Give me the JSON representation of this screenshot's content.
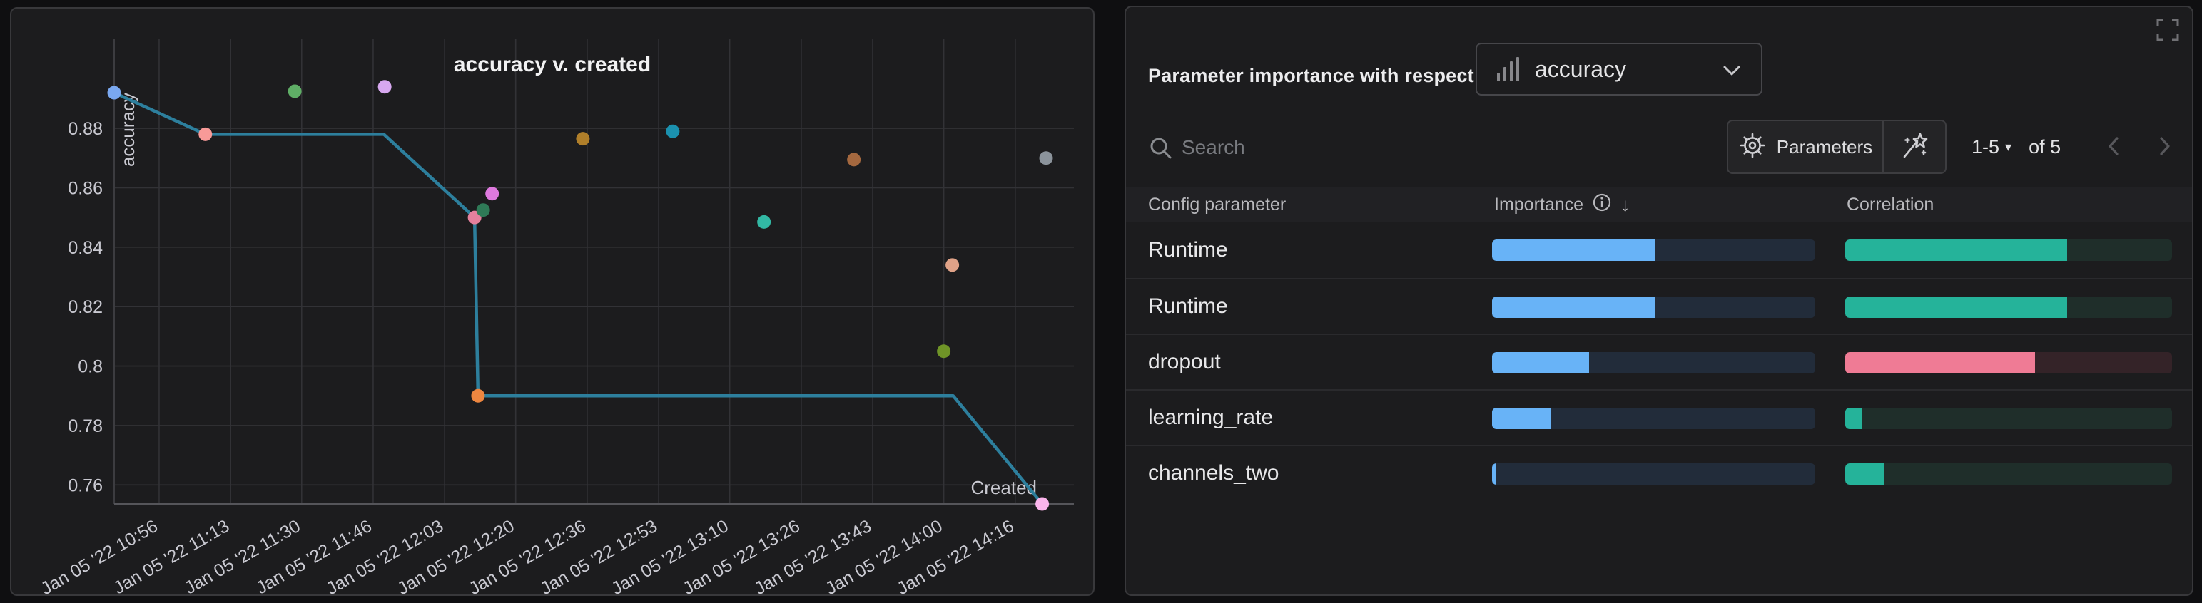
{
  "chart_data": {
    "type": "scatter",
    "title": "accuracy v. created",
    "xlabel": "Created",
    "ylabel": "accuracy",
    "x_unit": "minutes_since_midnight_Jan05_2022",
    "x_domain": [
      645.5,
      869.7
    ],
    "y_domain": [
      0.7536,
      0.91
    ],
    "grid": true,
    "line_color": "#2d7f9d",
    "y_ticks": [
      {
        "v": 0.88,
        "label": "0.88"
      },
      {
        "v": 0.86,
        "label": "0.86"
      },
      {
        "v": 0.84,
        "label": "0.84"
      },
      {
        "v": 0.82,
        "label": "0.82"
      },
      {
        "v": 0.8,
        "label": "0.8"
      },
      {
        "v": 0.78,
        "label": "0.78"
      },
      {
        "v": 0.76,
        "label": "0.76"
      }
    ],
    "x_ticks": [
      {
        "m": 656.0,
        "label": "Jan 05 '22 10:56"
      },
      {
        "m": 672.7,
        "label": "Jan 05 '22 11:13"
      },
      {
        "m": 689.3,
        "label": "Jan 05 '22 11:30"
      },
      {
        "m": 706.0,
        "label": "Jan 05 '22 11:46"
      },
      {
        "m": 722.7,
        "label": "Jan 05 '22 12:03"
      },
      {
        "m": 739.3,
        "label": "Jan 05 '22 12:20"
      },
      {
        "m": 756.0,
        "label": "Jan 05 '22 12:36"
      },
      {
        "m": 772.7,
        "label": "Jan 05 '22 12:53"
      },
      {
        "m": 789.3,
        "label": "Jan 05 '22 13:10"
      },
      {
        "m": 806.0,
        "label": "Jan 05 '22 13:26"
      },
      {
        "m": 822.7,
        "label": "Jan 05 '22 13:43"
      },
      {
        "m": 839.3,
        "label": "Jan 05 '22 14:00"
      },
      {
        "m": 856.0,
        "label": "Jan 05 '22 14:16"
      }
    ],
    "points": [
      {
        "time": "Jan 05 '22 10:45",
        "m": 645.5,
        "accuracy": 0.892,
        "color": "#7aa8f0"
      },
      {
        "time": "Jan 05 '22 11:07",
        "m": 666.8,
        "accuracy": 0.878,
        "color": "#f89a98"
      },
      {
        "time": "Jan 05 '22 11:28",
        "m": 687.7,
        "accuracy": 0.8925,
        "color": "#5fae66"
      },
      {
        "time": "Jan 05 '22 11:49",
        "m": 708.7,
        "accuracy": 0.894,
        "color": "#d7a8f0"
      },
      {
        "time": "Jan 05 '22 12:10",
        "m": 729.7,
        "accuracy": 0.85,
        "color": "#e5809d"
      },
      {
        "time": "Jan 05 '22 12:12",
        "m": 731.7,
        "accuracy": 0.8525,
        "color": "#2f7a57"
      },
      {
        "time": "Jan 05 '22 12:14",
        "m": 733.8,
        "accuracy": 0.858,
        "color": "#de79de"
      },
      {
        "time": "Jan 05 '22 12:11",
        "m": 730.5,
        "accuracy": 0.79,
        "color": "#ed8640"
      },
      {
        "time": "Jan 05 '22 12:35",
        "m": 755.0,
        "accuracy": 0.8765,
        "color": "#b07f2a"
      },
      {
        "time": "Jan 05 '22 12:56",
        "m": 776.0,
        "accuracy": 0.879,
        "color": "#1b91af"
      },
      {
        "time": "Jan 05 '22 13:17",
        "m": 797.3,
        "accuracy": 0.8485,
        "color": "#32b8a4"
      },
      {
        "time": "Jan 05 '22 13:38",
        "m": 818.3,
        "accuracy": 0.8695,
        "color": "#a4683f"
      },
      {
        "time": "Jan 05 '22 13:59",
        "m": 839.3,
        "accuracy": 0.805,
        "color": "#6f9427"
      },
      {
        "time": "Jan 05 '22 14:01",
        "m": 841.3,
        "accuracy": 0.834,
        "color": "#e0a288"
      },
      {
        "time": "Jan 05 '22 14:23",
        "m": 863.2,
        "accuracy": 0.87,
        "color": "#8b939b"
      },
      {
        "time": "Jan 05 '22 14:22",
        "m": 862.3,
        "accuracy": 0.7536,
        "color": "#fbb5ec"
      }
    ],
    "line_vertices": [
      [
        645.5,
        0.892
      ],
      [
        666.8,
        0.878
      ],
      [
        708.5,
        0.878
      ],
      [
        729.7,
        0.85
      ],
      [
        730.5,
        0.79
      ],
      [
        841.5,
        0.79
      ],
      [
        862.3,
        0.7536
      ]
    ]
  },
  "right_panel": {
    "header_label": "Parameter importance with respect to",
    "metric_select": {
      "value": "accuracy",
      "icon": "bar-chart-icon",
      "chevron": "chevron-down-icon"
    },
    "search": {
      "placeholder": "Search"
    },
    "toolbar": {
      "parameters_label": "Parameters",
      "pagination": {
        "range": "1-5",
        "caret": "▾",
        "of": "of 5"
      }
    },
    "table": {
      "headers": {
        "param": "Config parameter",
        "importance": "Importance",
        "correlation": "Correlation",
        "sort_arrow": "↓"
      },
      "colors": {
        "importance_fill": "#68b3f7",
        "importance_track": "#222c3a",
        "correlation_pos_fill": "#25b39a",
        "correlation_pos_track": "#1f2e2a",
        "correlation_neg_fill": "#ef7b95",
        "correlation_neg_track": "#342328"
      },
      "rows": [
        {
          "param": "Runtime",
          "importance": 0.505,
          "correlation": 0.68,
          "correlation_positive": true
        },
        {
          "param": "Runtime",
          "importance": 0.505,
          "correlation": 0.68,
          "correlation_positive": true
        },
        {
          "param": "dropout",
          "importance": 0.3,
          "correlation": 0.58,
          "correlation_positive": false
        },
        {
          "param": "learning_rate",
          "importance": 0.18,
          "correlation": 0.05,
          "correlation_positive": true
        },
        {
          "param": "channels_two",
          "importance": 0.012,
          "correlation": 0.12,
          "correlation_positive": true
        }
      ]
    }
  }
}
